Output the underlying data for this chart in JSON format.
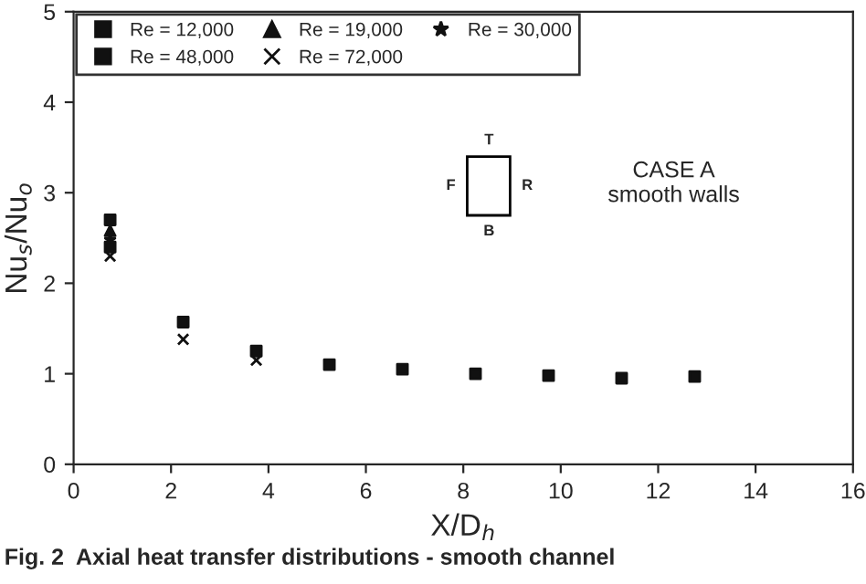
{
  "chart_data": {
    "type": "scatter",
    "xlabel": "X/D$_{h}$",
    "ylabel": "Nu$_{s}$/Nu$_{o}$",
    "x": [
      0.75,
      2.25,
      3.75,
      5.25,
      6.75,
      8.25,
      9.75,
      11.25,
      12.75
    ],
    "series": [
      {
        "name": "Re = 12,000",
        "color": "#111111",
        "marker": "square",
        "values": [
          2.7,
          1.57,
          1.25,
          1.1,
          1.05,
          1.0,
          0.98,
          0.95,
          0.97
        ]
      },
      {
        "name": "Re = 19,000",
        "color": "#111111",
        "marker": "triangle",
        "values": [
          2.58,
          null,
          null,
          null,
          null,
          null,
          null,
          null,
          null
        ]
      },
      {
        "name": "Re = 30,000",
        "color": "#111111",
        "marker": "star",
        "values": [
          2.48,
          null,
          null,
          null,
          null,
          null,
          null,
          null,
          null
        ]
      },
      {
        "name": "Re = 48,000",
        "color": "#111111",
        "marker": "square",
        "values": [
          2.4,
          null,
          null,
          null,
          null,
          null,
          null,
          null,
          null
        ]
      },
      {
        "name": "Re = 72,000",
        "color": "#111111",
        "marker": "cross",
        "values": [
          2.3,
          1.38,
          1.15,
          null,
          null,
          null,
          null,
          null,
          null
        ]
      }
    ],
    "xlim": [
      0,
      16
    ],
    "xticks": [
      0,
      2,
      4,
      6,
      8,
      10,
      12,
      14,
      16
    ],
    "ylim": [
      0,
      5
    ],
    "yticks": [
      0,
      1,
      2,
      3,
      4,
      5
    ],
    "legend": "top left",
    "grid": false,
    "annotations": [
      "T",
      "F",
      "R",
      "B",
      "CASE A\nsmooth walls",
      "Fig. 2  Axial heat transfer distributions - smooth channel"
    ]
  }
}
